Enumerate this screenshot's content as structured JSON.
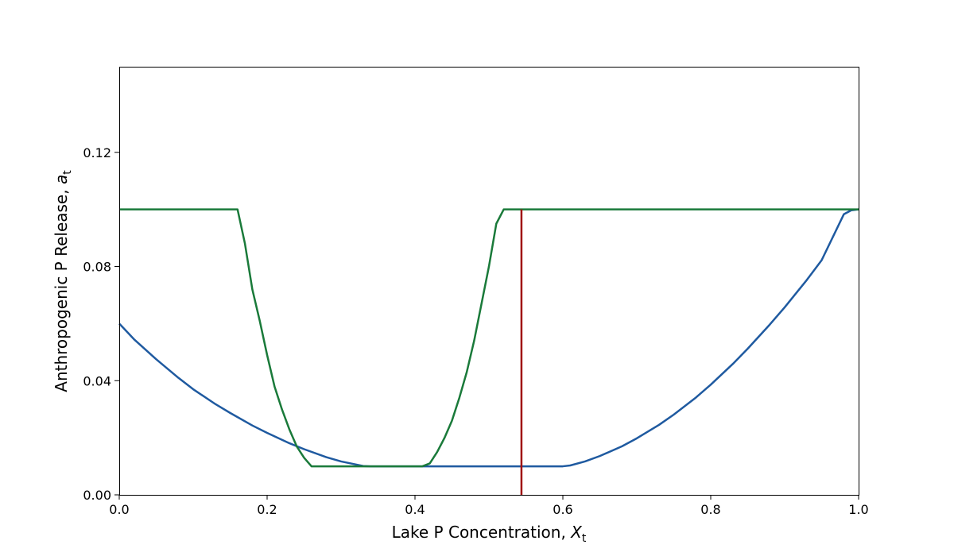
{
  "chart_data": {
    "type": "line",
    "xlabel": "Lake P Concentration, ",
    "xlabel_math": "X",
    "xlabel_sub": "t",
    "ylabel": "Anthropogenic P Release, ",
    "ylabel_math": "a",
    "ylabel_sub": "t",
    "xlim": [
      0.0,
      1.0
    ],
    "ylim": [
      0.0,
      0.15
    ],
    "xticks": [
      0.0,
      0.2,
      0.4,
      0.6,
      0.8,
      1.0
    ],
    "xtick_labels": [
      "0.0",
      "0.2",
      "0.4",
      "0.6",
      "0.8",
      "1.0"
    ],
    "yticks": [
      0.0,
      0.04,
      0.08,
      0.12
    ],
    "ytick_labels": [
      "0.00",
      "0.04",
      "0.08",
      "0.12"
    ],
    "grid": false,
    "series": [
      {
        "color": "#1f5aa0",
        "x": [
          0.0,
          0.02,
          0.05,
          0.08,
          0.1,
          0.13,
          0.15,
          0.18,
          0.2,
          0.23,
          0.25,
          0.28,
          0.3,
          0.33,
          0.34,
          0.36,
          0.4,
          0.45,
          0.5,
          0.55,
          0.6,
          0.61,
          0.63,
          0.65,
          0.68,
          0.7,
          0.73,
          0.75,
          0.78,
          0.8,
          0.83,
          0.85,
          0.88,
          0.9,
          0.93,
          0.95,
          0.98,
          0.99,
          1.0
        ],
        "y": [
          0.06,
          0.0545,
          0.0475,
          0.041,
          0.037,
          0.0318,
          0.0287,
          0.0243,
          0.0217,
          0.0181,
          0.016,
          0.0132,
          0.0117,
          0.0101,
          0.01,
          0.01,
          0.01,
          0.01,
          0.01,
          0.01,
          0.01,
          0.0103,
          0.0117,
          0.0136,
          0.017,
          0.0198,
          0.0245,
          0.0281,
          0.0341,
          0.0386,
          0.0459,
          0.0512,
          0.0597,
          0.0657,
          0.0753,
          0.0822,
          0.0983,
          0.0997,
          0.1
        ]
      },
      {
        "color": "#1a7a3a",
        "x": [
          0.0,
          0.1,
          0.16,
          0.17,
          0.18,
          0.19,
          0.2,
          0.21,
          0.22,
          0.23,
          0.24,
          0.25,
          0.26,
          0.3,
          0.35,
          0.4,
          0.41,
          0.42,
          0.43,
          0.44,
          0.45,
          0.46,
          0.47,
          0.48,
          0.49,
          0.5,
          0.51,
          0.52,
          0.6,
          0.7,
          0.8,
          0.9,
          1.0
        ],
        "y": [
          0.1,
          0.1,
          0.1,
          0.088,
          0.072,
          0.061,
          0.049,
          0.038,
          0.03,
          0.023,
          0.017,
          0.013,
          0.01,
          0.01,
          0.01,
          0.01,
          0.01,
          0.011,
          0.015,
          0.02,
          0.026,
          0.034,
          0.043,
          0.054,
          0.067,
          0.08,
          0.095,
          0.1,
          0.1,
          0.1,
          0.1,
          0.1,
          0.1
        ]
      }
    ],
    "vline": {
      "x": 0.544,
      "color": "#a01010"
    }
  }
}
